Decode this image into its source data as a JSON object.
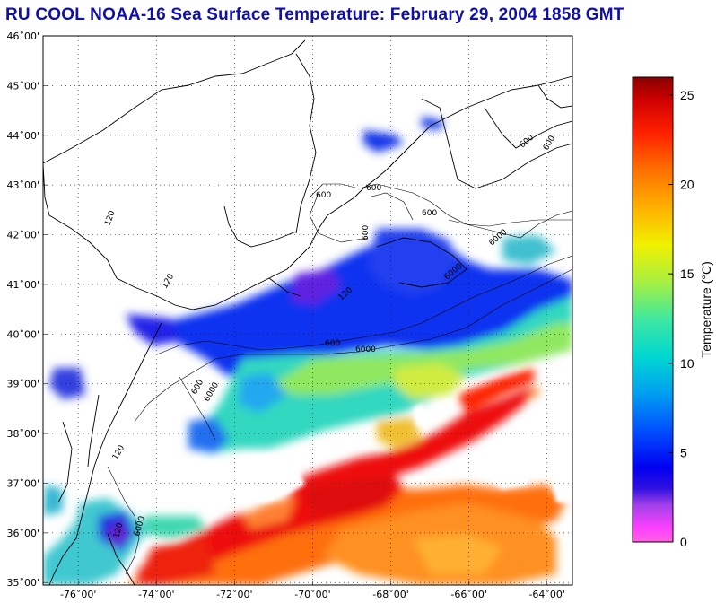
{
  "title": "RU COOL  NOAA-16  Sea Surface Temperature:  February 29, 2004 1858 GMT",
  "map": {
    "lat_labels": [
      "35˚00'",
      "36˚00'",
      "37˚00'",
      "38˚00'",
      "39˚00'",
      "40˚00'",
      "41˚00'",
      "42˚00'",
      "43˚00'",
      "44˚00'",
      "45˚00'",
      "46˚00'"
    ],
    "lon_labels": [
      "-76˚00'",
      "-74˚00'",
      "-72˚00'",
      "-70˚00'",
      "-68˚00'",
      "-66˚00'",
      "-64˚00'"
    ],
    "lat_values": [
      35,
      36,
      37,
      38,
      39,
      40,
      41,
      42,
      43,
      44,
      45,
      46
    ],
    "lon_values": [
      -76,
      -74,
      -72,
      -70,
      -68,
      -66,
      -64
    ],
    "contour_labels": [
      "120",
      "600",
      "600",
      "600",
      "600",
      "600",
      "6000",
      "6000",
      "120",
      "120",
      "600",
      "6000",
      "600",
      "6000",
      "120",
      "6000",
      "120",
      "600"
    ]
  },
  "colorbar": {
    "label": "Temperature (°C)",
    "ticks": [
      "25",
      "20",
      "15",
      "10",
      "5",
      "0"
    ],
    "tick_values": [
      25,
      20,
      15,
      10,
      5,
      0
    ],
    "min": 0,
    "max": 26
  }
}
